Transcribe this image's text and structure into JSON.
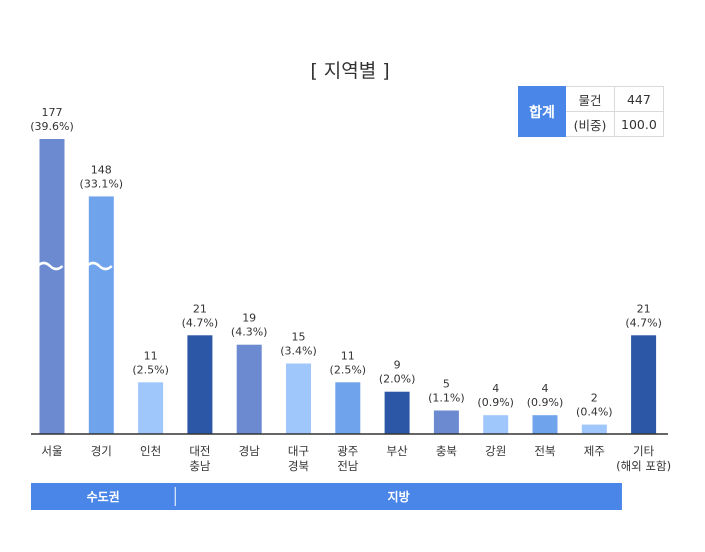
{
  "chart_data": {
    "type": "bar",
    "title": "[ 지역별 ]",
    "categories": [
      [
        "서울"
      ],
      [
        "경기"
      ],
      [
        "인천"
      ],
      [
        "대전",
        "충남"
      ],
      [
        "경남"
      ],
      [
        "대구",
        "경북"
      ],
      [
        "광주",
        "전남"
      ],
      [
        "부산"
      ],
      [
        "충북"
      ],
      [
        "강원"
      ],
      [
        "전북"
      ],
      [
        "제주"
      ],
      [
        "기타",
        "(해외 포함)"
      ]
    ],
    "values": [
      177,
      148,
      11,
      21,
      19,
      15,
      11,
      9,
      5,
      4,
      4,
      2,
      21
    ],
    "value_labels": [
      "177",
      "148",
      "11",
      "21",
      "19",
      "15",
      "11",
      "9",
      "5",
      "4",
      "4",
      "2",
      "21"
    ],
    "percent_labels": [
      "(39.6%)",
      "(33.1%)",
      "(2.5%)",
      "(4.7%)",
      "(4.3%)",
      "(3.4%)",
      "(2.5%)",
      "(2.0%)",
      "(1.1%)",
      "(0.9%)",
      "(0.9%)",
      "(0.4%)",
      "(4.7%)"
    ],
    "colors": [
      "#6b8ad0",
      "#6fa4ec",
      "#9fc7fb",
      "#2c56a6",
      "#6b8ad0",
      "#9fc7fb",
      "#6fa4ec",
      "#2c56a6",
      "#6b8ad0",
      "#9fc7fb",
      "#6fa4ec",
      "#9fc7fb",
      "#2c56a6"
    ],
    "axis_break_bars": [
      0,
      1
    ],
    "groups": [
      {
        "label": "수도권",
        "from": 0,
        "to": 2
      },
      {
        "label": "지방",
        "from": 3,
        "to": 11
      }
    ],
    "group_color": "#4a86e8"
  },
  "total": {
    "label": "합계",
    "rows": [
      {
        "key": "물건",
        "value": "447"
      },
      {
        "key": "(비중)",
        "value": "100.0"
      }
    ]
  }
}
